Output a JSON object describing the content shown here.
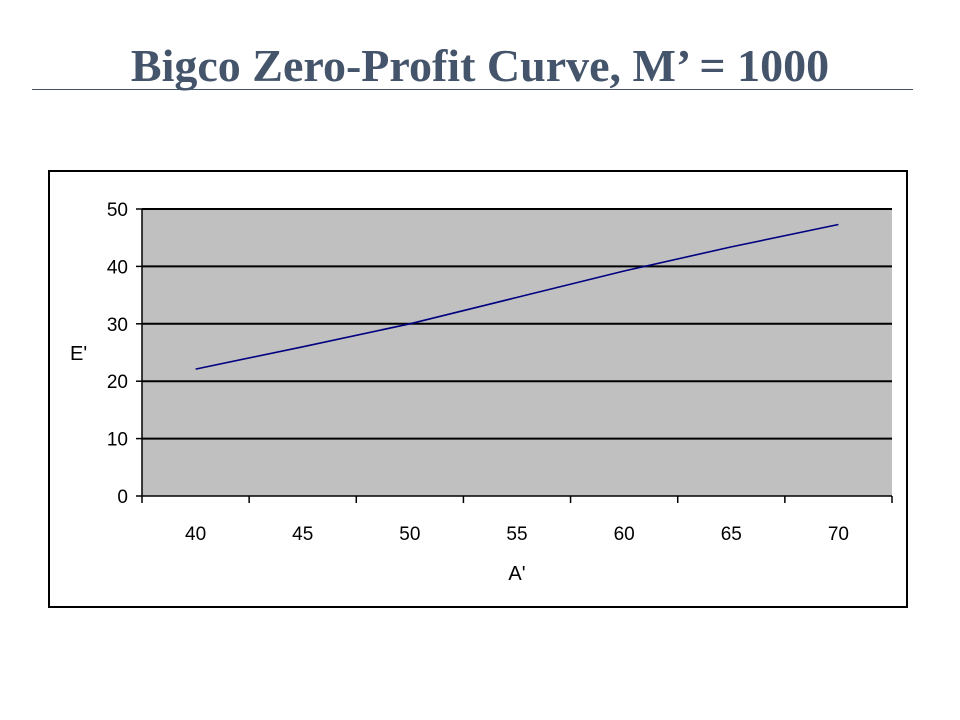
{
  "slide": {
    "title": "Bigco Zero-Profit Curve, M’ = 1000"
  },
  "colors": {
    "title": "#44546a",
    "plot_background": "#c0c0c0",
    "gridline": "#000000",
    "series_line": "#000080",
    "frame": "#000000"
  },
  "chart_data": {
    "type": "line",
    "title": "",
    "xlabel": "A'",
    "ylabel": "E'",
    "xlim": [
      37.5,
      72.5
    ],
    "ylim": [
      0,
      50
    ],
    "x_ticks": [
      40,
      45,
      50,
      55,
      60,
      65,
      70
    ],
    "y_ticks": [
      0,
      10,
      20,
      30,
      40,
      50
    ],
    "x_tick_labels": [
      "40",
      "45",
      "50",
      "55",
      "60",
      "65",
      "70"
    ],
    "y_tick_labels": [
      "0",
      "10",
      "20",
      "30",
      "40",
      "50"
    ],
    "grid": {
      "horizontal": true,
      "vertical": false
    },
    "legend": "none",
    "series": [
      {
        "x": [
          40,
          45,
          50,
          55,
          60,
          65,
          70
        ],
        "values": [
          22.1,
          26.0,
          30.0,
          34.6,
          39.2,
          43.4,
          47.3
        ]
      }
    ]
  }
}
